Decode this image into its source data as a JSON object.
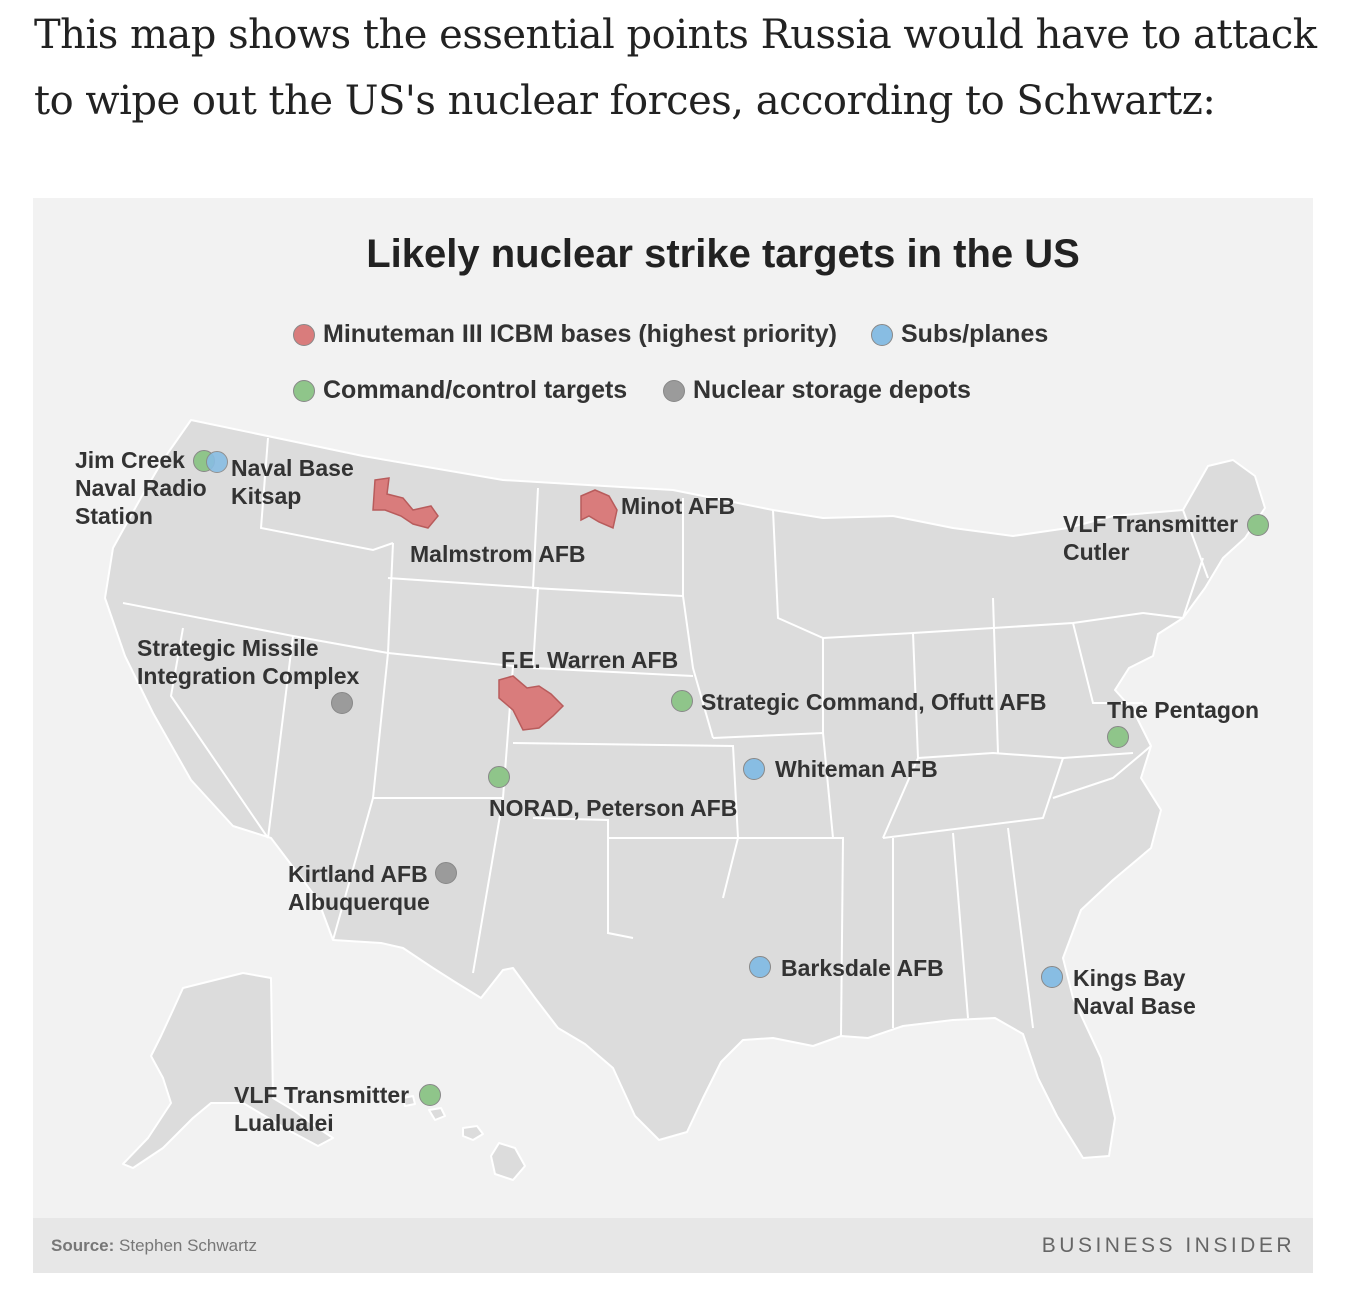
{
  "intro_text": "This map shows the essential points Russia would have to attack to wipe out the US's nuclear forces, according to Schwartz:",
  "map": {
    "title": "Likely nuclear strike targets in the US",
    "legend": [
      {
        "label": "Minuteman III ICBM bases (highest priority)",
        "color": "#d97c7c",
        "category": "icbm"
      },
      {
        "label": "Subs/planes",
        "color": "#88bde3",
        "category": "subs"
      },
      {
        "label": "Command/control targets",
        "color": "#8fc58a",
        "category": "command"
      },
      {
        "label": "Nuclear storage depots",
        "color": "#9b9b9b",
        "category": "storage"
      }
    ],
    "locations": [
      {
        "name": "Jim Creek Naval Radio Station",
        "line1": "Jim Creek",
        "line2": "Naval Radio",
        "line3": "Station",
        "category": "command"
      },
      {
        "name": "Naval Base Kitsap",
        "line1": "Naval Base",
        "line2": "Kitsap",
        "category": "subs"
      },
      {
        "name": "Malmstrom AFB",
        "line1": "Malmstrom AFB",
        "category": "icbm"
      },
      {
        "name": "Minot AFB",
        "line1": "Minot AFB",
        "category": "icbm"
      },
      {
        "name": "VLF Transmitter Cutler",
        "line1": "VLF Transmitter",
        "line2": "Cutler",
        "category": "command"
      },
      {
        "name": "Strategic Missile Integration Complex",
        "line1": "Strategic Missile",
        "line2": "Integration Complex",
        "category": "storage"
      },
      {
        "name": "F.E. Warren AFB",
        "line1": "F.E. Warren AFB",
        "category": "icbm"
      },
      {
        "name": "Strategic Command, Offutt AFB",
        "line1": "Strategic Command, Offutt AFB",
        "category": "command"
      },
      {
        "name": "The Pentagon",
        "line1": "The Pentagon",
        "category": "command"
      },
      {
        "name": "Whiteman AFB",
        "line1": "Whiteman AFB",
        "category": "subs"
      },
      {
        "name": "NORAD, Peterson AFB",
        "line1": "NORAD, Peterson AFB",
        "category": "command"
      },
      {
        "name": "Kirtland AFB Albuquerque",
        "line1": "Kirtland AFB",
        "line2": "Albuquerque",
        "category": "storage"
      },
      {
        "name": "Barksdale AFB",
        "line1": "Barksdale AFB",
        "category": "subs"
      },
      {
        "name": "Kings Bay Naval Base",
        "line1": "Kings Bay",
        "line2": "Naval Base",
        "category": "subs"
      },
      {
        "name": "VLF Transmitter Lualualei",
        "line1": "VLF Transmitter",
        "line2": "Lualualei",
        "category": "command"
      }
    ],
    "colors": {
      "land": "#dcdcdc",
      "border": "#ffffff",
      "background": "#f2f2f2"
    }
  },
  "footer": {
    "source_label": "Source:",
    "source_value": "Stephen Schwartz",
    "brand": "BUSINESS INSIDER"
  }
}
